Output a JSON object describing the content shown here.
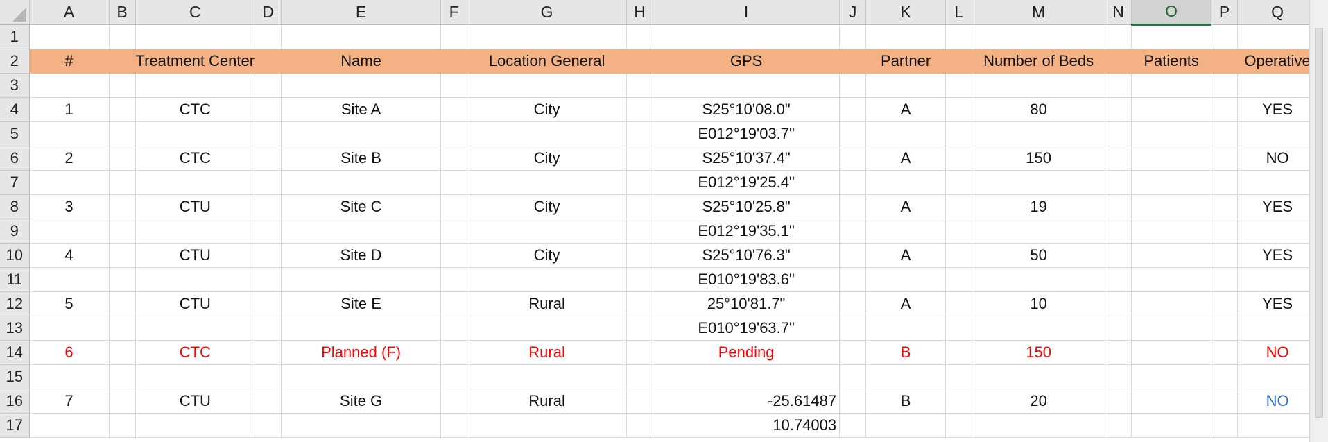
{
  "columns": [
    "A",
    "B",
    "C",
    "D",
    "E",
    "F",
    "G",
    "H",
    "I",
    "J",
    "K",
    "L",
    "M",
    "N",
    "O",
    "P",
    "Q"
  ],
  "selected_column": "O",
  "header": {
    "num": "#",
    "treatment_center": "Treatment Center",
    "name": "Name",
    "location": "Location General",
    "gps": "GPS",
    "partner": "Partner",
    "beds": "Number of Beds",
    "patients": "Patients",
    "operative": "Operative"
  },
  "rows": [
    {
      "num": "1",
      "center": "CTC",
      "name": "Site A",
      "location": "City",
      "gps_1": "S25°10'08.0\"",
      "gps_2": "E012°19'03.7\"",
      "partner": "A",
      "beds": "80",
      "patients": "",
      "operative": "YES"
    },
    {
      "num": "2",
      "center": "CTC",
      "name": "Site B",
      "location": "City",
      "gps_1": "S25°10'37.4\"",
      "gps_2": "E012°19'25.4\"",
      "partner": "A",
      "beds": "150",
      "patients": "",
      "operative": "NO"
    },
    {
      "num": "3",
      "center": "CTU",
      "name": "Site C",
      "location": "City",
      "gps_1": "S25°10'25.8\"",
      "gps_2": "E012°19'35.1\"",
      "partner": "A",
      "beds": "19",
      "patients": "",
      "operative": "YES"
    },
    {
      "num": "4",
      "center": "CTU",
      "name": "Site D",
      "location": "City",
      "gps_1": "S25°10'76.3\"",
      "gps_2": "E010°19'83.6\"",
      "partner": "A",
      "beds": "50",
      "patients": "",
      "operative": "YES"
    },
    {
      "num": "5",
      "center": "CTU",
      "name": "Site E",
      "location": "Rural",
      "gps_1": "25°10'81.7\"",
      "gps_2": "E010°19'63.7\"",
      "partner": "A",
      "beds": "10",
      "patients": "",
      "operative": "YES"
    },
    {
      "num": "6",
      "center": "CTC",
      "name": "Planned (F)",
      "location": "Rural",
      "gps_1": "Pending",
      "gps_2": "",
      "partner": "B",
      "beds": "150",
      "patients": "",
      "operative": "NO"
    },
    {
      "num": "7",
      "center": "CTU",
      "name": "Site G",
      "location": "Rural",
      "gps_1": "-25.61487",
      "gps_2": "10.74003",
      "partner": "B",
      "beds": "20",
      "patients": "",
      "operative": "NO"
    }
  ],
  "colors": {
    "header_fill": "#f4b183",
    "planned_text": "#ff0000",
    "site_g_operative": "#2f6fc7",
    "selected_column_text": "#217346"
  }
}
